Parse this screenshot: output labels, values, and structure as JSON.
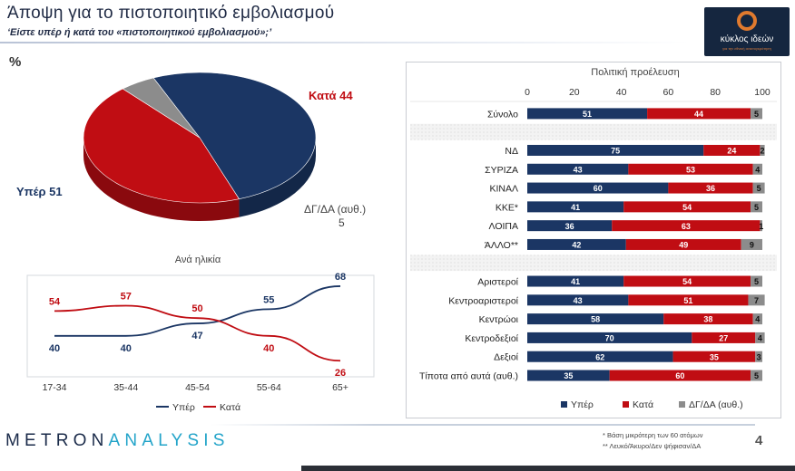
{
  "header": {
    "title": "Άποψη για το πιστοποιητικό εμβολιασμού",
    "subtitle": "‘Είστε υπέρ ή κατά του «πιστοποιητικού εμβολιασμού»;’",
    "percent_sign": "%"
  },
  "logo": {
    "text": "κύκλος ιδεών",
    "tagline": "για την εθνική ανασυγκρότηση"
  },
  "colors": {
    "yper": "#1b3664",
    "kata": "#c00d13",
    "dgda": "#8c8c8c"
  },
  "chart_data": [
    {
      "type": "pie",
      "slices": [
        {
          "name": "Υπέρ",
          "value": 51,
          "label": "Υπέρ 51"
        },
        {
          "name": "Κατά",
          "value": 44,
          "label": "Κατά 44"
        },
        {
          "name": "ΔΓ/ΔΑ (αυθ.)",
          "value": 5,
          "label_top": "ΔΓ/ΔΑ (αυθ.)",
          "label_bottom": "5"
        }
      ]
    },
    {
      "type": "line",
      "title": "Ανά ηλικία",
      "categories": [
        "17-34",
        "35-44",
        "45-54",
        "55-64",
        "65+"
      ],
      "series": [
        {
          "name": "Υπέρ",
          "values": [
            40,
            40,
            47,
            55,
            68
          ]
        },
        {
          "name": "Κατά",
          "values": [
            54,
            57,
            50,
            40,
            26
          ]
        }
      ],
      "legend": [
        "Υπέρ",
        "Κατά"
      ],
      "ylim": [
        20,
        70
      ]
    },
    {
      "type": "bar",
      "orientation": "horizontal",
      "stacked": true,
      "title": "Πολιτική προέλευση",
      "xlim": [
        0,
        100
      ],
      "xticks": [
        0,
        20,
        40,
        60,
        80,
        100
      ],
      "series_names": [
        "Υπέρ",
        "Κατά",
        "ΔΓ/ΔΑ (αυθ.)"
      ],
      "groups": [
        {
          "rows": [
            {
              "label": "Σύνολο",
              "values": [
                51,
                44,
                5
              ]
            }
          ]
        },
        {
          "rows": [
            {
              "label": "ΝΔ",
              "values": [
                75,
                24,
                2
              ]
            },
            {
              "label": "ΣΥΡΙΖΑ",
              "values": [
                43,
                53,
                4
              ]
            },
            {
              "label": "ΚΙΝΑΛ",
              "values": [
                60,
                36,
                5
              ]
            },
            {
              "label": "ΚΚΕ*",
              "values": [
                41,
                54,
                5
              ]
            },
            {
              "label": "ΛΟΙΠΑ",
              "values": [
                36,
                63,
                1
              ]
            },
            {
              "label": "ΆΛΛΟ**",
              "values": [
                42,
                49,
                9
              ]
            }
          ]
        },
        {
          "rows": [
            {
              "label": "Αριστεροί",
              "values": [
                41,
                54,
                5
              ]
            },
            {
              "label": "Κεντροαριστεροί",
              "values": [
                43,
                51,
                7
              ]
            },
            {
              "label": "Κεντρώοι",
              "values": [
                58,
                38,
                4
              ]
            },
            {
              "label": "Κεντροδεξιοί",
              "values": [
                70,
                27,
                4
              ]
            },
            {
              "label": "Δεξιοί",
              "values": [
                62,
                35,
                3
              ]
            },
            {
              "label": "Τίποτα από αυτά (αυθ.)",
              "values": [
                35,
                60,
                5
              ]
            }
          ]
        }
      ]
    }
  ],
  "footer": {
    "brand_part1": "METRON",
    "brand_part2": "ANALYSIS",
    "footnote1": "*  Βάση μικρότερη των 60 ατόμων",
    "footnote2": "** Λευκό/Άκυρο/Δεν ψήφισαν/ΔΑ",
    "page_number": "4"
  }
}
